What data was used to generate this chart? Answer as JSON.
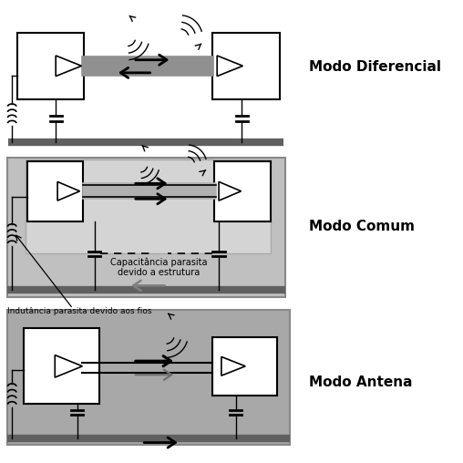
{
  "bg_color": "#ffffff",
  "cable_color": "#909090",
  "ground_color": "#606060",
  "panel2_color": "#c0c0c0",
  "panel3_color": "#a8a8a8",
  "title1": "Modo Diferencial",
  "title2": "Modo Comum",
  "title3": "Modo Antena",
  "cap_label": "Capacitância parasita\ndevido a estrutura",
  "ind_label": "Indutância parasita devido aos fios",
  "title_fontsize": 11,
  "label_fontsize": 7
}
